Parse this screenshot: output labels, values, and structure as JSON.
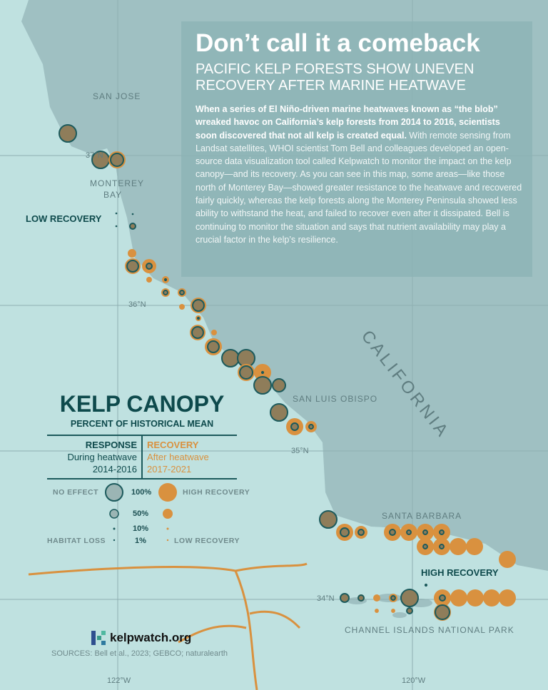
{
  "title": "Don’t call it a comeback",
  "subtitle": "PACIFIC KELP FORESTS SHOW UNEVEN RECOVERY AFTER MARINE HEATWAVE",
  "body_bold": "When a series of El Niño-driven marine heatwaves known as “the blob” wreaked havoc on California’s kelp forests from 2014 to 2016, scientists soon discovered that not all kelp is created equal.",
  "body_text": " With remote sensing from Landsat satellites, WHOI scientist Tom Bell and colleagues developed an open-source data visualization tool called Kelpwatch to monitor the impact on the kelp canopy—and its recovery. As you can see in this map, some areas—like those north of Monterey Bay—showed greater resistance to the heatwave and recovered fairly quickly, whereas the kelp forests along the Monterey Peninsula showed less ability to withstand the heat, and failed to recover even after it dissipated. Bell is continuing to monitor the situation and says that nutrient availability may play a crucial factor in the kelp’s resilience.",
  "places": {
    "san_jose": "SAN JOSE",
    "monterey": "MONTEREY",
    "bay": "BAY",
    "slo": "SAN LUIS OBISPO",
    "california": "CALIFORNIA",
    "santa_barbara": "SANTA BARBARA",
    "channel": "CHANNEL ISLANDS NATIONAL PARK"
  },
  "regions": {
    "low": "LOW RECOVERY",
    "high": "HIGH RECOVERY"
  },
  "coords": {
    "lat37": "37°N",
    "lat36": "36°N",
    "lat35": "35°N",
    "lat34": "34°N",
    "lon122": "122°W",
    "lon120": "120°W"
  },
  "legend": {
    "title": "KELP CANOPY",
    "subtitle": "PERCENT OF HISTORICAL MEAN",
    "response": {
      "head": "RESPONSE",
      "l1": "During heatwave",
      "l2": "2014-2016"
    },
    "recovery": {
      "head": "RECOVERY",
      "l1": "After heatwave",
      "l2": "2017-2021"
    },
    "no_effect": "NO EFFECT",
    "high_recovery": "HIGH RECOVERY",
    "habitat_loss": "HABITAT LOSS",
    "low_recovery": "LOW RECOVERY",
    "levels": [
      "100%",
      "50%",
      "10%",
      "1%"
    ]
  },
  "colors": {
    "response_fill": "#8f7d5a",
    "response_stroke": "#1c5a5c",
    "recovery": "#d9913f",
    "ocean": "#bfe1e0",
    "land": "#9fc0c2",
    "dark_teal": "#0e4a4c"
  },
  "logo": "kelpwatch.org",
  "sources": "SOURCES: Bell et al., 2023; GEBCO; naturalearth",
  "sites": [
    {
      "response": 100,
      "recovery": 0
    },
    {
      "response": 100,
      "recovery": 0
    },
    {
      "response": 56,
      "recovery": 100
    },
    {
      "response": 1,
      "recovery": 0
    },
    {
      "response": 1,
      "recovery": 0
    },
    {
      "response": 1,
      "recovery": 0
    },
    {
      "response": 11,
      "recovery": 11
    },
    {
      "response": 0,
      "recovery": 25
    },
    {
      "response": 44,
      "recovery": 84
    },
    {
      "response": 11,
      "recovery": 69
    },
    {
      "response": 0,
      "recovery": 11
    },
    {
      "response": 3,
      "recovery": 17
    },
    {
      "response": 6,
      "recovery": 25
    },
    {
      "response": 6,
      "recovery": 25
    },
    {
      "response": 0,
      "recovery": 11
    },
    {
      "response": 44,
      "recovery": 84
    },
    {
      "response": 3,
      "recovery": 11
    },
    {
      "response": 44,
      "recovery": 84
    },
    {
      "response": 0,
      "recovery": 11
    },
    {
      "response": 44,
      "recovery": 100
    },
    {
      "response": 100,
      "recovery": 0
    },
    {
      "response": 100,
      "recovery": 0
    },
    {
      "response": 56,
      "recovery": 100
    },
    {
      "response": 3,
      "recovery": 100
    },
    {
      "response": 100,
      "recovery": 84
    },
    {
      "response": 56,
      "recovery": 0
    },
    {
      "response": 100,
      "recovery": 0
    },
    {
      "response": 17,
      "recovery": 100
    },
    {
      "response": 6,
      "recovery": 44
    },
    {
      "response": 100,
      "recovery": 0
    },
    {
      "response": 25,
      "recovery": 100
    },
    {
      "response": 11,
      "recovery": 56
    },
    {
      "response": 11,
      "recovery": 100
    },
    {
      "response": 6,
      "recovery": 100
    },
    {
      "response": 6,
      "recovery": 100
    },
    {
      "response": 6,
      "recovery": 100
    },
    {
      "response": 6,
      "recovery": 100
    },
    {
      "response": 6,
      "recovery": 100
    },
    {
      "response": 0,
      "recovery": 100
    },
    {
      "response": 0,
      "recovery": 100
    },
    {
      "response": 0,
      "recovery": 100
    },
    {
      "response": 25,
      "recovery": 0
    },
    {
      "response": 11,
      "recovery": 17
    },
    {
      "response": 0,
      "recovery": 17
    },
    {
      "response": 0,
      "recovery": 6
    },
    {
      "response": 6,
      "recovery": 25
    },
    {
      "response": 0,
      "recovery": 6
    },
    {
      "response": 100,
      "recovery": 0
    },
    {
      "response": 11,
      "recovery": 0
    },
    {
      "response": 3,
      "recovery": 0
    },
    {
      "response": 11,
      "recovery": 100
    },
    {
      "response": 0,
      "recovery": 100
    },
    {
      "response": 0,
      "recovery": 100
    },
    {
      "response": 0,
      "recovery": 100
    },
    {
      "response": 0,
      "recovery": 100
    },
    {
      "response": 69,
      "recovery": 100
    }
  ]
}
